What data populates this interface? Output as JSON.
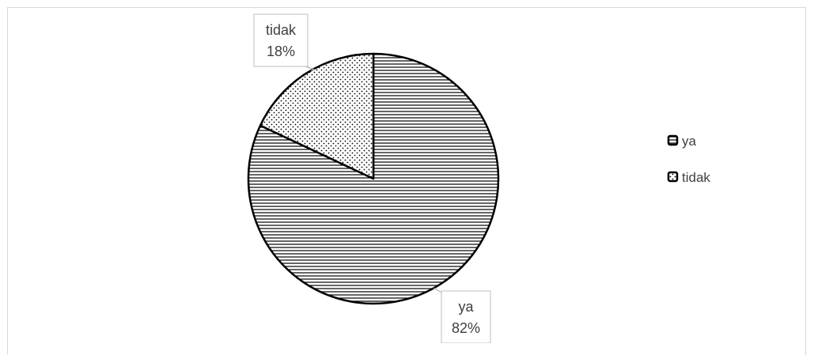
{
  "chart_data": {
    "type": "pie",
    "categories": [
      "ya",
      "tidak"
    ],
    "values": [
      82,
      18
    ],
    "data_labels": [
      {
        "category": "ya",
        "value": "82%"
      },
      {
        "category": "tidak",
        "value": "18%"
      }
    ],
    "legend": {
      "placement": "right",
      "entries": [
        "ya",
        "tidak"
      ]
    },
    "patterns": [
      "horizontal-lines",
      "dots"
    ],
    "title": ""
  }
}
